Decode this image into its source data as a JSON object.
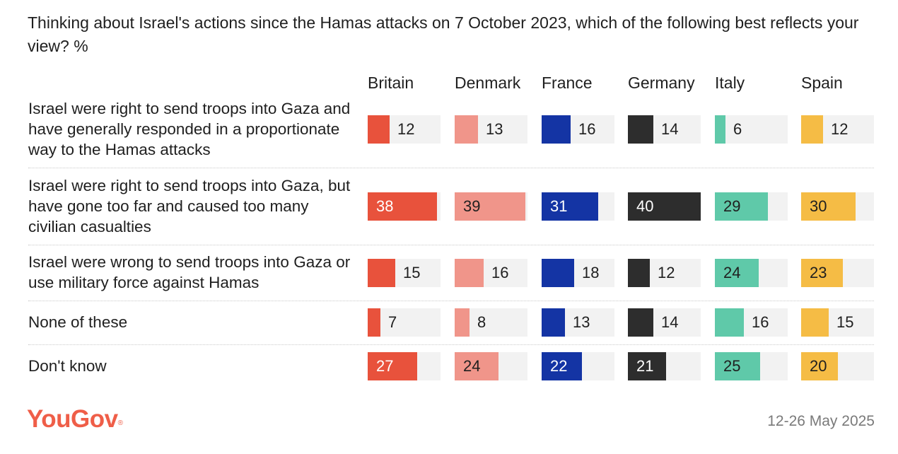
{
  "chart_data": {
    "type": "bar",
    "title": "Thinking about Israel's actions since the Hamas attacks on 7 October 2023, which of the following best reflects your view? %",
    "xlim": [
      0,
      40
    ],
    "categories": [
      "Israel were right to send troops into Gaza and have generally responded in a proportionate way to the Hamas attacks",
      "Israel were right to send troops into Gaza, but have gone too far and caused too many civilian casualties",
      "Israel were wrong to send troops into Gaza or use military force against Hamas",
      "None of these",
      "Don't know"
    ],
    "series": [
      {
        "name": "Britain",
        "color": "#e8523c",
        "values": [
          12,
          38,
          15,
          7,
          27
        ]
      },
      {
        "name": "Denmark",
        "color": "#f0958a",
        "values": [
          13,
          39,
          16,
          8,
          24
        ]
      },
      {
        "name": "France",
        "color": "#1434a4",
        "values": [
          16,
          31,
          18,
          13,
          22
        ]
      },
      {
        "name": "Germany",
        "color": "#2d2d2d",
        "values": [
          14,
          40,
          12,
          14,
          21
        ]
      },
      {
        "name": "Italy",
        "color": "#5fc9a9",
        "values": [
          6,
          29,
          24,
          16,
          25
        ]
      },
      {
        "name": "Spain",
        "color": "#f5bc45",
        "values": [
          12,
          30,
          23,
          15,
          20
        ]
      }
    ]
  },
  "footer": {
    "brand": "YouGov",
    "brand_mark": "®",
    "date": "12-26 May 2025"
  }
}
